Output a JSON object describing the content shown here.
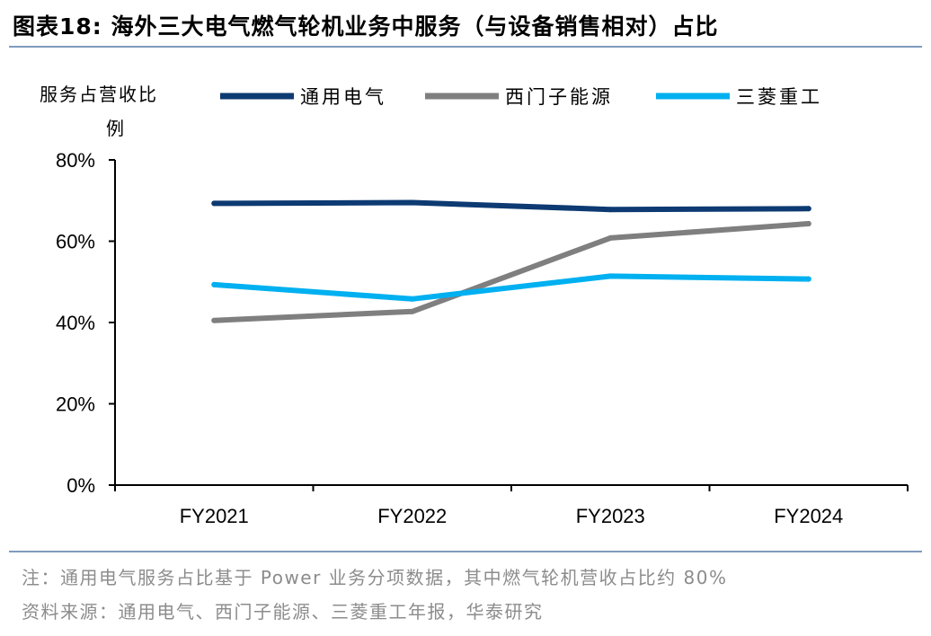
{
  "title": "图表18:  海外三大电气燃气轮机业务中服务（与设备销售相对）占比",
  "note": "注：通用电气服务占比基于 Power 业务分项数据，其中燃气轮机营收占比约 80%",
  "source": "资料来源：通用电气、西门子能源、三菱重工年报，华泰研究",
  "chart_data": {
    "type": "line",
    "title": "图表18:  海外三大电气燃气轮机业务中服务（与设备销售相对）占比",
    "ylabel_line1": "服务占营收比",
    "ylabel_line2": "例",
    "xlabel": "",
    "categories": [
      "FY2021",
      "FY2022",
      "FY2023",
      "FY2024"
    ],
    "yticks": [
      "0%",
      "20%",
      "40%",
      "60%",
      "80%"
    ],
    "ylim": [
      0,
      80
    ],
    "grid": false,
    "legend_position": "top",
    "series": [
      {
        "name": "通用电气",
        "color": "#0d3a72",
        "values": [
          69.3,
          69.5,
          67.8,
          68.0
        ]
      },
      {
        "name": "西门子能源",
        "color": "#7f7f7f",
        "values": [
          40.5,
          42.7,
          60.8,
          64.3
        ]
      },
      {
        "name": "三菱重工",
        "color": "#00b0f0",
        "values": [
          49.3,
          45.8,
          51.4,
          50.7
        ]
      }
    ]
  }
}
